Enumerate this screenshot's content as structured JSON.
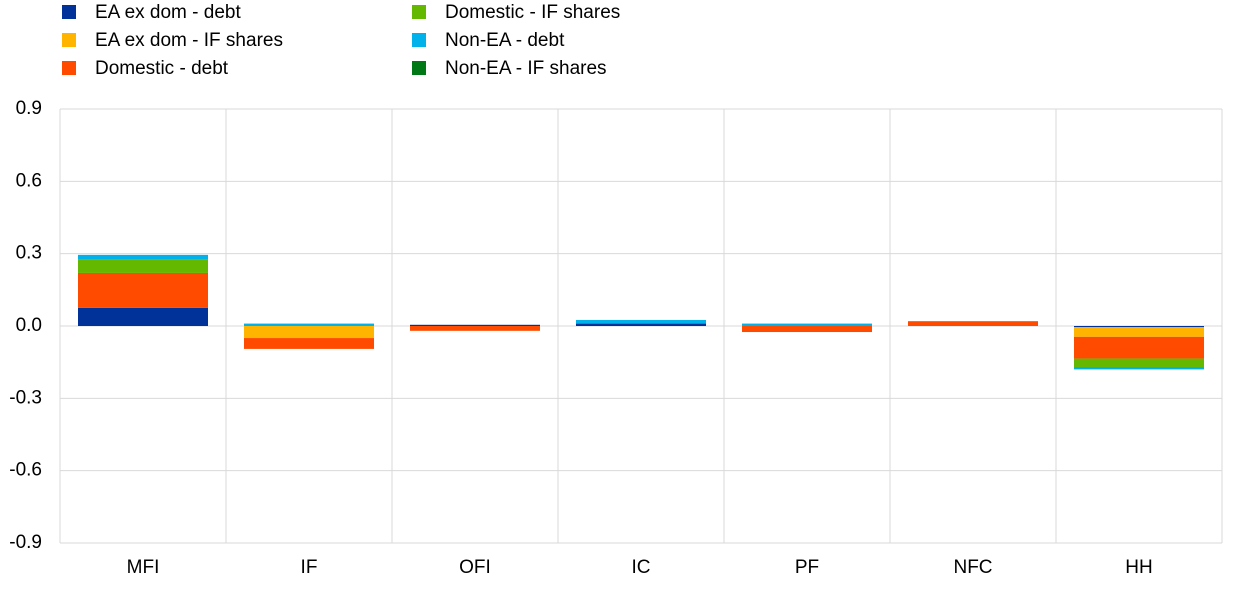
{
  "chart_data": {
    "type": "stacked_bar",
    "categories": [
      "MFI",
      "IF",
      "OFI",
      "IC",
      "PF",
      "NFC",
      "HH"
    ],
    "series": [
      {
        "name": "EA ex dom - debt",
        "color": "#003299",
        "values": [
          0.075,
          0.0,
          0.005,
          0.01,
          0.0,
          0.0,
          -0.005
        ]
      },
      {
        "name": "EA ex dom - IF shares",
        "color": "#ffb400",
        "values": [
          0.0,
          -0.05,
          0.0,
          0.0,
          0.0,
          0.0,
          -0.04
        ]
      },
      {
        "name": "Domestic - debt",
        "color": "#ff4b00",
        "values": [
          0.145,
          -0.045,
          -0.02,
          0.0,
          -0.025,
          0.02,
          -0.09
        ]
      },
      {
        "name": "Domestic - IF shares",
        "color": "#65b800",
        "values": [
          0.055,
          0.0,
          0.0,
          0.0,
          0.0,
          0.0,
          -0.035
        ]
      },
      {
        "name": "Non-EA - debt",
        "color": "#00b1ea",
        "values": [
          0.02,
          0.01,
          0.0,
          0.015,
          0.01,
          0.0,
          -0.01
        ]
      },
      {
        "name": "Non-EA - IF shares",
        "color": "#007816",
        "values": [
          0.0,
          0.0,
          0.0,
          0.0,
          0.0,
          0.0,
          0.0
        ]
      }
    ],
    "ylim": [
      -0.9,
      0.9
    ],
    "yticks": [
      -0.9,
      -0.6,
      -0.3,
      {
        "value": 0,
        "label": "0.0"
      },
      0.3,
      0.6,
      0.9
    ],
    "grid": true
  }
}
